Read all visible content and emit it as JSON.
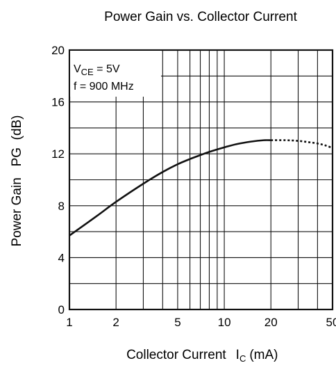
{
  "chart_data": {
    "type": "line",
    "title": "Power Gain vs. Collector Current",
    "xlabel": {
      "main": "Collector Current",
      "symbol": "I",
      "subscript": "C",
      "unit": "(mA)"
    },
    "ylabel": "Power Gain   PG  (dB)",
    "x_scale": "log",
    "xlim": [
      1,
      50
    ],
    "ylim": [
      0,
      20
    ],
    "x_tick_labels": [
      "1",
      "2",
      "5",
      "10",
      "20",
      "50"
    ],
    "x_tick_values": [
      1,
      2,
      5,
      10,
      20,
      50
    ],
    "y_tick_labels": [
      "0",
      "4",
      "8",
      "12",
      "16",
      "20"
    ],
    "y_tick_values": [
      0,
      4,
      8,
      12,
      16,
      20
    ],
    "y_minor_gridlines": [
      2,
      6,
      10,
      14,
      18
    ],
    "x_minor_gridlines": [
      3,
      4,
      6,
      7,
      8,
      9,
      30,
      40
    ],
    "grid": true,
    "annotation": {
      "line1": {
        "symbol": "V",
        "subscript": "CE",
        "rest": " = 5V"
      },
      "line2": "f = 900 MHz"
    },
    "series": [
      {
        "style": "solid",
        "x": [
          1,
          1.5,
          2,
          3,
          4,
          5,
          6,
          7,
          8,
          10,
          12,
          15,
          18,
          20
        ],
        "y": [
          5.7,
          7.2,
          8.3,
          9.7,
          10.6,
          11.2,
          11.6,
          11.9,
          12.15,
          12.5,
          12.75,
          12.95,
          13.05,
          13.05
        ]
      },
      {
        "style": "dotted",
        "x": [
          20,
          25,
          30,
          35,
          40,
          45,
          50
        ],
        "y": [
          13.05,
          13.05,
          13.0,
          12.9,
          12.8,
          12.65,
          12.45
        ]
      }
    ]
  }
}
